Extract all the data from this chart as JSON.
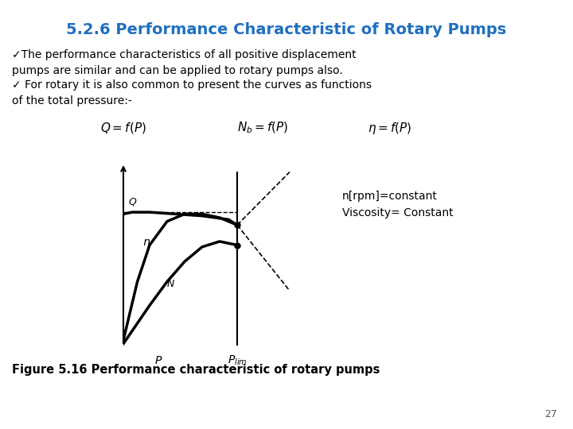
{
  "title": "5.2.6 Performance Characteristic of Rotary Pumps",
  "title_color": "#1F6FBF",
  "bg_color": "#FFFFFF",
  "body_text": [
    "✓The performance characteristics of all positive displacement",
    "pumps are similar and can be applied to rotary pumps also.",
    "✓ For rotary it is also common to present the curves as functions",
    "of the total pressure:-"
  ],
  "legend_text": "n[rpm]=constant\nViscosity= Constant",
  "figure_caption": "Figure 5.16 Performance characteristic of rotary pumps",
  "page_number": "27",
  "curve_color": "#000000"
}
